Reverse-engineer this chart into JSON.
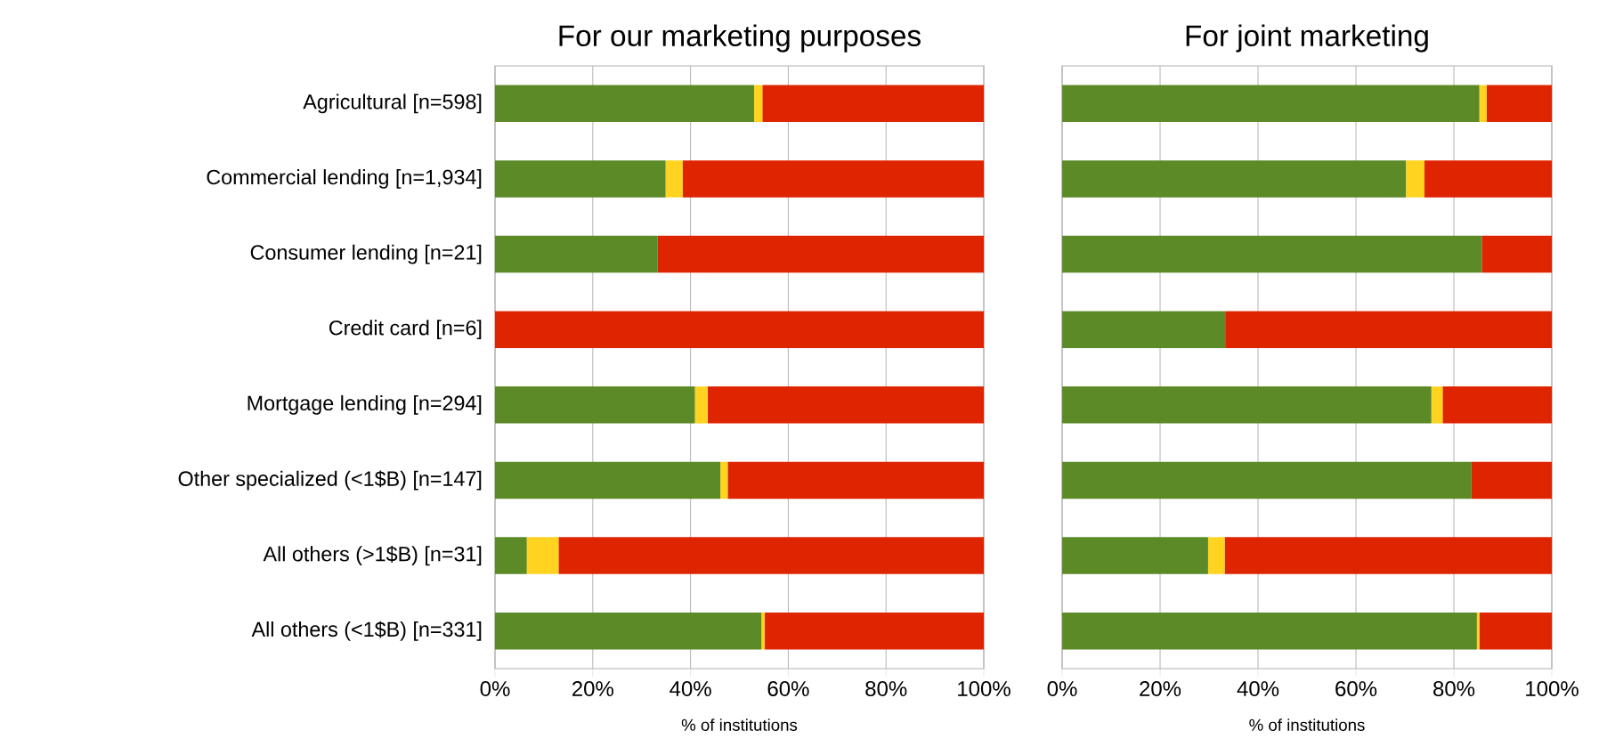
{
  "chart_data": [
    {
      "type": "bar",
      "orientation": "horizontal",
      "stacked": true,
      "title": "For our marketing purposes",
      "xlabel": "% of institutions",
      "categories": [
        "Agricultural [n=598]",
        "Commercial lending [n=1,934]",
        "Consumer lending [n=21]",
        "Credit card [n=6]",
        "Mortgage lending [n=294]",
        "Other specialized (<1$B) [n=147]",
        "All others (>1$B) [n=31]",
        "All others (<1$B) [n=331]"
      ],
      "series": [
        {
          "color": "#5b8a27",
          "values": [
            53.0,
            34.9,
            33.3,
            0,
            40.9,
            46.1,
            6.5,
            54.5
          ]
        },
        {
          "color": "#ffd320",
          "values": [
            1.7,
            3.5,
            0,
            0,
            2.6,
            1.5,
            6.5,
            0.7
          ]
        },
        {
          "color": "#df2400",
          "values": [
            45.3,
            61.6,
            66.7,
            100,
            56.5,
            52.4,
            87.0,
            44.8
          ]
        }
      ],
      "xlim": [
        0,
        100
      ],
      "xticks": [
        {
          "value": 0,
          "label": "0%"
        },
        {
          "value": 20,
          "label": "20%"
        },
        {
          "value": 40,
          "label": "40%"
        },
        {
          "value": 60,
          "label": "60%"
        },
        {
          "value": 80,
          "label": "80%"
        },
        {
          "value": 100,
          "label": "100%"
        }
      ],
      "grid": "x"
    },
    {
      "type": "bar",
      "orientation": "horizontal",
      "stacked": true,
      "title": "For joint marketing",
      "xlabel": "% of institutions",
      "categories": [
        null,
        null,
        null,
        null,
        null,
        null,
        null,
        null
      ],
      "series": [
        {
          "color": "#5b8a27",
          "values": [
            85.2,
            70.2,
            85.7,
            33.3,
            75.4,
            83.6,
            29.8,
            84.7
          ]
        },
        {
          "color": "#ffd320",
          "values": [
            1.5,
            3.8,
            0,
            0,
            2.3,
            0,
            3.4,
            0.5
          ]
        },
        {
          "color": "#df2400",
          "values": [
            13.3,
            26.0,
            14.3,
            66.7,
            22.3,
            16.4,
            66.8,
            14.8
          ]
        }
      ],
      "xlim": [
        0,
        100
      ],
      "xticks": [
        {
          "value": 0,
          "label": "0%"
        },
        {
          "value": 20,
          "label": "20%"
        },
        {
          "value": 40,
          "label": "40%"
        },
        {
          "value": 60,
          "label": "60%"
        },
        {
          "value": 80,
          "label": "80%"
        },
        {
          "value": 100,
          "label": "100%"
        }
      ],
      "grid": "x",
      "tick_labels": "x"
    }
  ]
}
